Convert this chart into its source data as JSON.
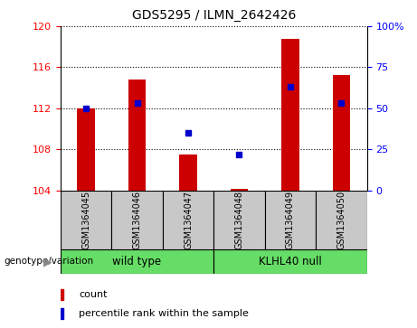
{
  "title": "GDS5295 / ILMN_2642426",
  "categories": [
    "GSM1364045",
    "GSM1364046",
    "GSM1364047",
    "GSM1364048",
    "GSM1364049",
    "GSM1364050"
  ],
  "bar_heights": [
    112.0,
    114.8,
    107.5,
    104.1,
    118.8,
    115.2
  ],
  "bar_base": 104.0,
  "percentile_ranks": [
    50,
    53,
    35,
    22,
    63,
    53
  ],
  "ylim_left": [
    104,
    120
  ],
  "ylim_right": [
    0,
    100
  ],
  "left_ticks": [
    104,
    108,
    112,
    116,
    120
  ],
  "right_ticks": [
    0,
    25,
    50,
    75,
    100
  ],
  "right_tick_labels": [
    "0",
    "25",
    "50",
    "75",
    "100%"
  ],
  "bar_color": "#cc0000",
  "dot_color": "#0000cc",
  "group1_label": "wild type",
  "group2_label": "KLHL40 null",
  "group1_color": "#66dd66",
  "group2_color": "#66dd66",
  "genotype_label": "genotype/variation",
  "legend_count_label": "count",
  "legend_pct_label": "percentile rank within the sample",
  "sample_bg_color": "#c8c8c8",
  "plot_bg": "#ffffff",
  "figsize": [
    4.61,
    3.63
  ],
  "dpi": 100
}
